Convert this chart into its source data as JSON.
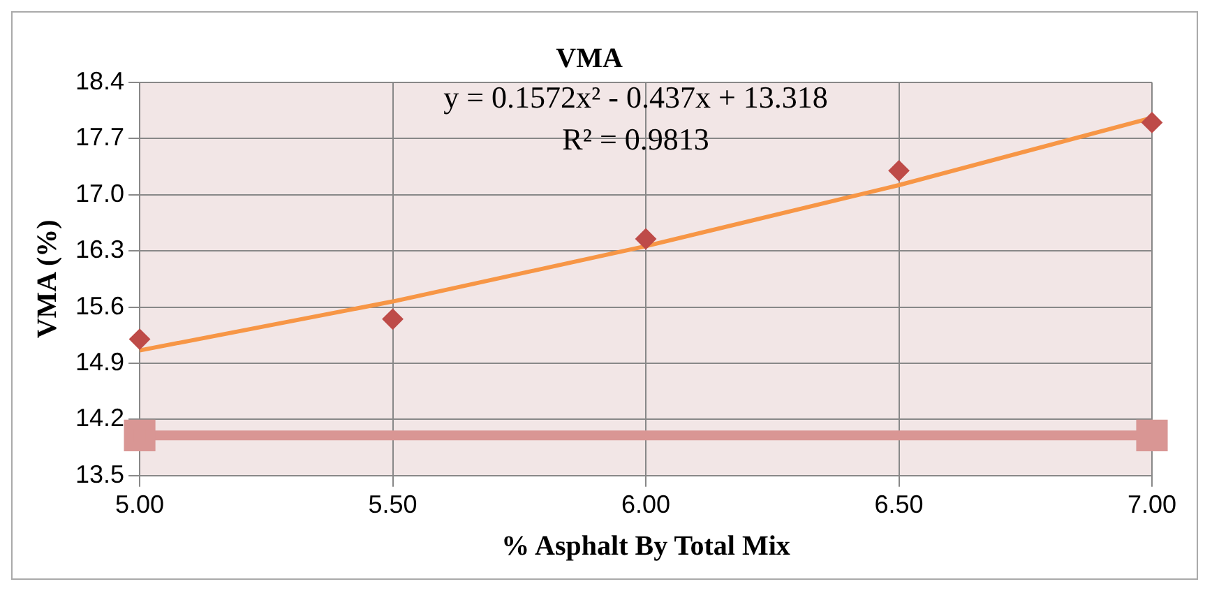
{
  "chart_data": {
    "type": "scatter",
    "title": "VMA",
    "xlabel": "% Asphalt By Total Mix",
    "ylabel": "VMA (%)",
    "xlim": [
      5,
      7
    ],
    "xticks": [
      {
        "value": 5,
        "label": "5.00"
      },
      {
        "value": 5.5,
        "label": "5.50"
      },
      {
        "value": 6,
        "label": "6.00"
      },
      {
        "value": 6.5,
        "label": "6.50"
      },
      {
        "value": 7,
        "label": "7.00"
      }
    ],
    "ylim": [
      13.5,
      18.4
    ],
    "yticks": [
      13.5,
      14.2,
      14.9,
      15.6,
      16.3,
      {
        "value": 17,
        "label": "17.0"
      },
      17.7,
      18.4
    ],
    "grid": true,
    "legend": false,
    "annotations": [
      "y = 0.1572x² - 0.437x + 13.318",
      "R² = 0.9813"
    ],
    "series": [
      {
        "marker": "diamond",
        "color": "#be4b48",
        "x": [
          5,
          5.5,
          6,
          6.5,
          7
        ],
        "values": [
          15.2,
          15.45,
          16.45,
          17.3,
          17.9
        ]
      },
      {
        "type": "line",
        "marker": "none",
        "color": "#f79646",
        "x": [
          5,
          5.5,
          6,
          6.5,
          7
        ],
        "values": [
          15.06,
          15.67,
          16.36,
          17.12,
          17.96
        ]
      },
      {
        "type": "line",
        "marker": "square",
        "color": "#d99694",
        "x": [
          5,
          7
        ],
        "values": [
          14.0,
          14.0
        ]
      }
    ]
  }
}
